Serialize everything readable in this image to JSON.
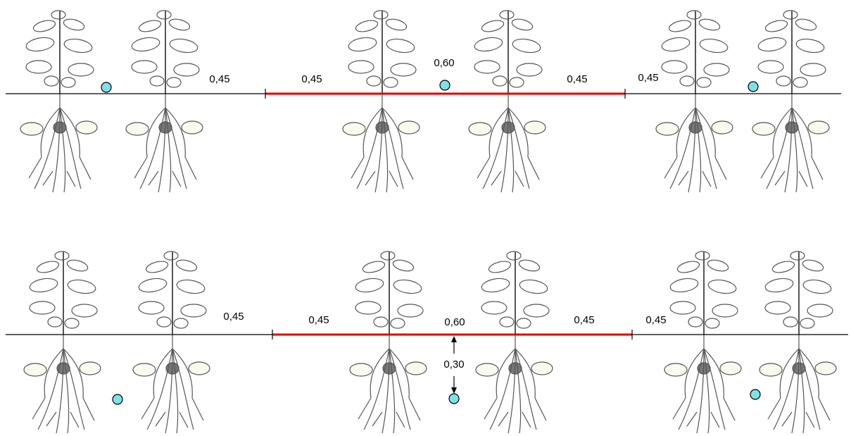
{
  "rows": [
    {
      "labels": [
        "0,45",
        "0,45",
        "0,60",
        "0,45",
        "0,45"
      ]
    },
    {
      "labels": [
        "0,45",
        "0,45",
        "0,60",
        "0,45",
        "0,45",
        "0,30"
      ]
    }
  ]
}
